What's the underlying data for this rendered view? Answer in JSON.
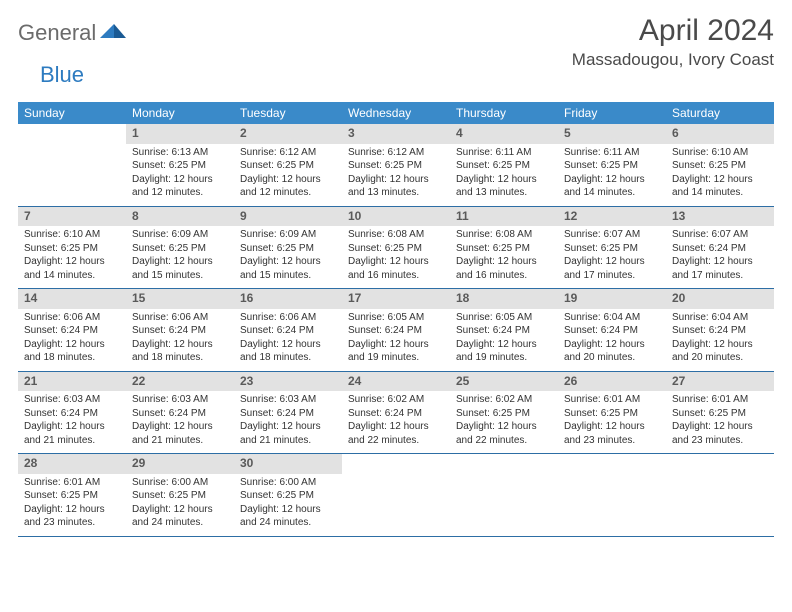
{
  "brand": {
    "part1": "General",
    "part2": "Blue"
  },
  "header": {
    "month_title": "April 2024",
    "location": "Massadougou, Ivory Coast"
  },
  "colors": {
    "header_bg": "#3a8ac9",
    "header_fg": "#ffffff",
    "daynum_bg": "#e2e2e2",
    "daynum_fg": "#5a5a5a",
    "row_border": "#2d6ea5",
    "logo_gray": "#6b6b6b",
    "logo_blue": "#2d7bc0"
  },
  "calendar": {
    "day_headers": [
      "Sunday",
      "Monday",
      "Tuesday",
      "Wednesday",
      "Thursday",
      "Friday",
      "Saturday"
    ],
    "first_weekday_index": 1,
    "days": [
      {
        "n": 1,
        "sunrise": "6:13 AM",
        "sunset": "6:25 PM",
        "daylight": "12 hours and 12 minutes."
      },
      {
        "n": 2,
        "sunrise": "6:12 AM",
        "sunset": "6:25 PM",
        "daylight": "12 hours and 12 minutes."
      },
      {
        "n": 3,
        "sunrise": "6:12 AM",
        "sunset": "6:25 PM",
        "daylight": "12 hours and 13 minutes."
      },
      {
        "n": 4,
        "sunrise": "6:11 AM",
        "sunset": "6:25 PM",
        "daylight": "12 hours and 13 minutes."
      },
      {
        "n": 5,
        "sunrise": "6:11 AM",
        "sunset": "6:25 PM",
        "daylight": "12 hours and 14 minutes."
      },
      {
        "n": 6,
        "sunrise": "6:10 AM",
        "sunset": "6:25 PM",
        "daylight": "12 hours and 14 minutes."
      },
      {
        "n": 7,
        "sunrise": "6:10 AM",
        "sunset": "6:25 PM",
        "daylight": "12 hours and 14 minutes."
      },
      {
        "n": 8,
        "sunrise": "6:09 AM",
        "sunset": "6:25 PM",
        "daylight": "12 hours and 15 minutes."
      },
      {
        "n": 9,
        "sunrise": "6:09 AM",
        "sunset": "6:25 PM",
        "daylight": "12 hours and 15 minutes."
      },
      {
        "n": 10,
        "sunrise": "6:08 AM",
        "sunset": "6:25 PM",
        "daylight": "12 hours and 16 minutes."
      },
      {
        "n": 11,
        "sunrise": "6:08 AM",
        "sunset": "6:25 PM",
        "daylight": "12 hours and 16 minutes."
      },
      {
        "n": 12,
        "sunrise": "6:07 AM",
        "sunset": "6:25 PM",
        "daylight": "12 hours and 17 minutes."
      },
      {
        "n": 13,
        "sunrise": "6:07 AM",
        "sunset": "6:24 PM",
        "daylight": "12 hours and 17 minutes."
      },
      {
        "n": 14,
        "sunrise": "6:06 AM",
        "sunset": "6:24 PM",
        "daylight": "12 hours and 18 minutes."
      },
      {
        "n": 15,
        "sunrise": "6:06 AM",
        "sunset": "6:24 PM",
        "daylight": "12 hours and 18 minutes."
      },
      {
        "n": 16,
        "sunrise": "6:06 AM",
        "sunset": "6:24 PM",
        "daylight": "12 hours and 18 minutes."
      },
      {
        "n": 17,
        "sunrise": "6:05 AM",
        "sunset": "6:24 PM",
        "daylight": "12 hours and 19 minutes."
      },
      {
        "n": 18,
        "sunrise": "6:05 AM",
        "sunset": "6:24 PM",
        "daylight": "12 hours and 19 minutes."
      },
      {
        "n": 19,
        "sunrise": "6:04 AM",
        "sunset": "6:24 PM",
        "daylight": "12 hours and 20 minutes."
      },
      {
        "n": 20,
        "sunrise": "6:04 AM",
        "sunset": "6:24 PM",
        "daylight": "12 hours and 20 minutes."
      },
      {
        "n": 21,
        "sunrise": "6:03 AM",
        "sunset": "6:24 PM",
        "daylight": "12 hours and 21 minutes."
      },
      {
        "n": 22,
        "sunrise": "6:03 AM",
        "sunset": "6:24 PM",
        "daylight": "12 hours and 21 minutes."
      },
      {
        "n": 23,
        "sunrise": "6:03 AM",
        "sunset": "6:24 PM",
        "daylight": "12 hours and 21 minutes."
      },
      {
        "n": 24,
        "sunrise": "6:02 AM",
        "sunset": "6:24 PM",
        "daylight": "12 hours and 22 minutes."
      },
      {
        "n": 25,
        "sunrise": "6:02 AM",
        "sunset": "6:25 PM",
        "daylight": "12 hours and 22 minutes."
      },
      {
        "n": 26,
        "sunrise": "6:01 AM",
        "sunset": "6:25 PM",
        "daylight": "12 hours and 23 minutes."
      },
      {
        "n": 27,
        "sunrise": "6:01 AM",
        "sunset": "6:25 PM",
        "daylight": "12 hours and 23 minutes."
      },
      {
        "n": 28,
        "sunrise": "6:01 AM",
        "sunset": "6:25 PM",
        "daylight": "12 hours and 23 minutes."
      },
      {
        "n": 29,
        "sunrise": "6:00 AM",
        "sunset": "6:25 PM",
        "daylight": "12 hours and 24 minutes."
      },
      {
        "n": 30,
        "sunrise": "6:00 AM",
        "sunset": "6:25 PM",
        "daylight": "12 hours and 24 minutes."
      }
    ],
    "labels": {
      "sunrise": "Sunrise:",
      "sunset": "Sunset:",
      "daylight": "Daylight:"
    }
  }
}
